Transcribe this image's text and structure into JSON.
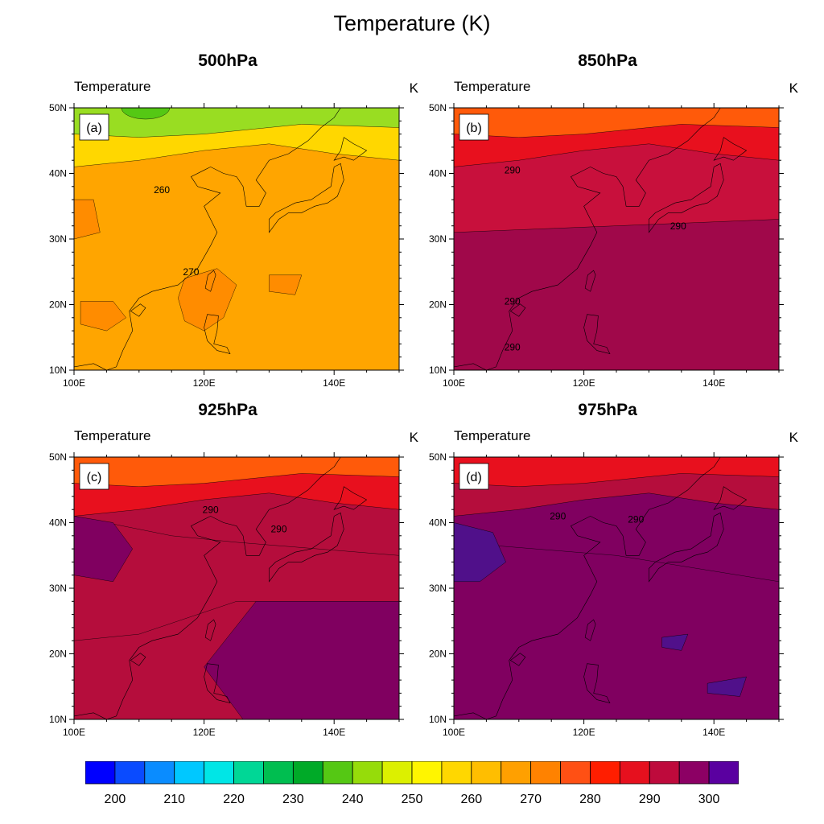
{
  "figure": {
    "title": "Temperature (K)"
  },
  "panels": [
    {
      "id": "a",
      "title": "500hPa",
      "left_string": "Temperature",
      "right_string": "K",
      "label": "(a)",
      "contour_labels": [
        "260",
        "270"
      ],
      "dominant_color": "#FFA500",
      "north_color": "#FFD700",
      "far_north_color": "#99DD22",
      "patch_color": "#FF8C00"
    },
    {
      "id": "b",
      "title": "850hPa",
      "left_string": "Temperature",
      "right_string": "K",
      "label": "(b)",
      "contour_labels": [
        "290",
        "290",
        "290",
        "290"
      ],
      "dominant_color": "#C8103C",
      "north_color": "#E8101E",
      "far_north_color": "#FF5A0A",
      "patch_color": "#A0084A"
    },
    {
      "id": "c",
      "title": "925hPa",
      "left_string": "Temperature",
      "right_string": "K",
      "label": "(c)",
      "contour_labels": [
        "290",
        "290"
      ],
      "dominant_color": "#B50D3C",
      "north_color": "#E8101E",
      "far_north_color": "#FF5A0A",
      "patch_color": "#800060"
    },
    {
      "id": "d",
      "title": "975hPa",
      "left_string": "Temperature",
      "right_string": "K",
      "label": "(d)",
      "contour_labels": [
        "290",
        "290"
      ],
      "dominant_color": "#800060",
      "north_color": "#B50D3C",
      "far_north_color": "#E8101E",
      "patch_color": "#50108A"
    }
  ],
  "axes": {
    "x_ticks": [
      "100E",
      "120E",
      "140E"
    ],
    "y_ticks": [
      "50N",
      "40N",
      "30N",
      "20N",
      "10N"
    ]
  },
  "colorbar": {
    "colors": [
      "#0000FF",
      "#0A4BFF",
      "#0A8CFF",
      "#00C8FF",
      "#00E6E6",
      "#00D796",
      "#00BE50",
      "#00AA28",
      "#55C814",
      "#96DC0A",
      "#DCF000",
      "#FFF500",
      "#FFD700",
      "#FFBE00",
      "#FFA000",
      "#FF8200",
      "#FF5014",
      "#FF1E00",
      "#E6101E",
      "#BE0A3C",
      "#8C0064",
      "#5A00A0"
    ],
    "tick_labels": [
      "200",
      "210",
      "220",
      "230",
      "240",
      "250",
      "260",
      "270",
      "280",
      "290",
      "300"
    ]
  }
}
